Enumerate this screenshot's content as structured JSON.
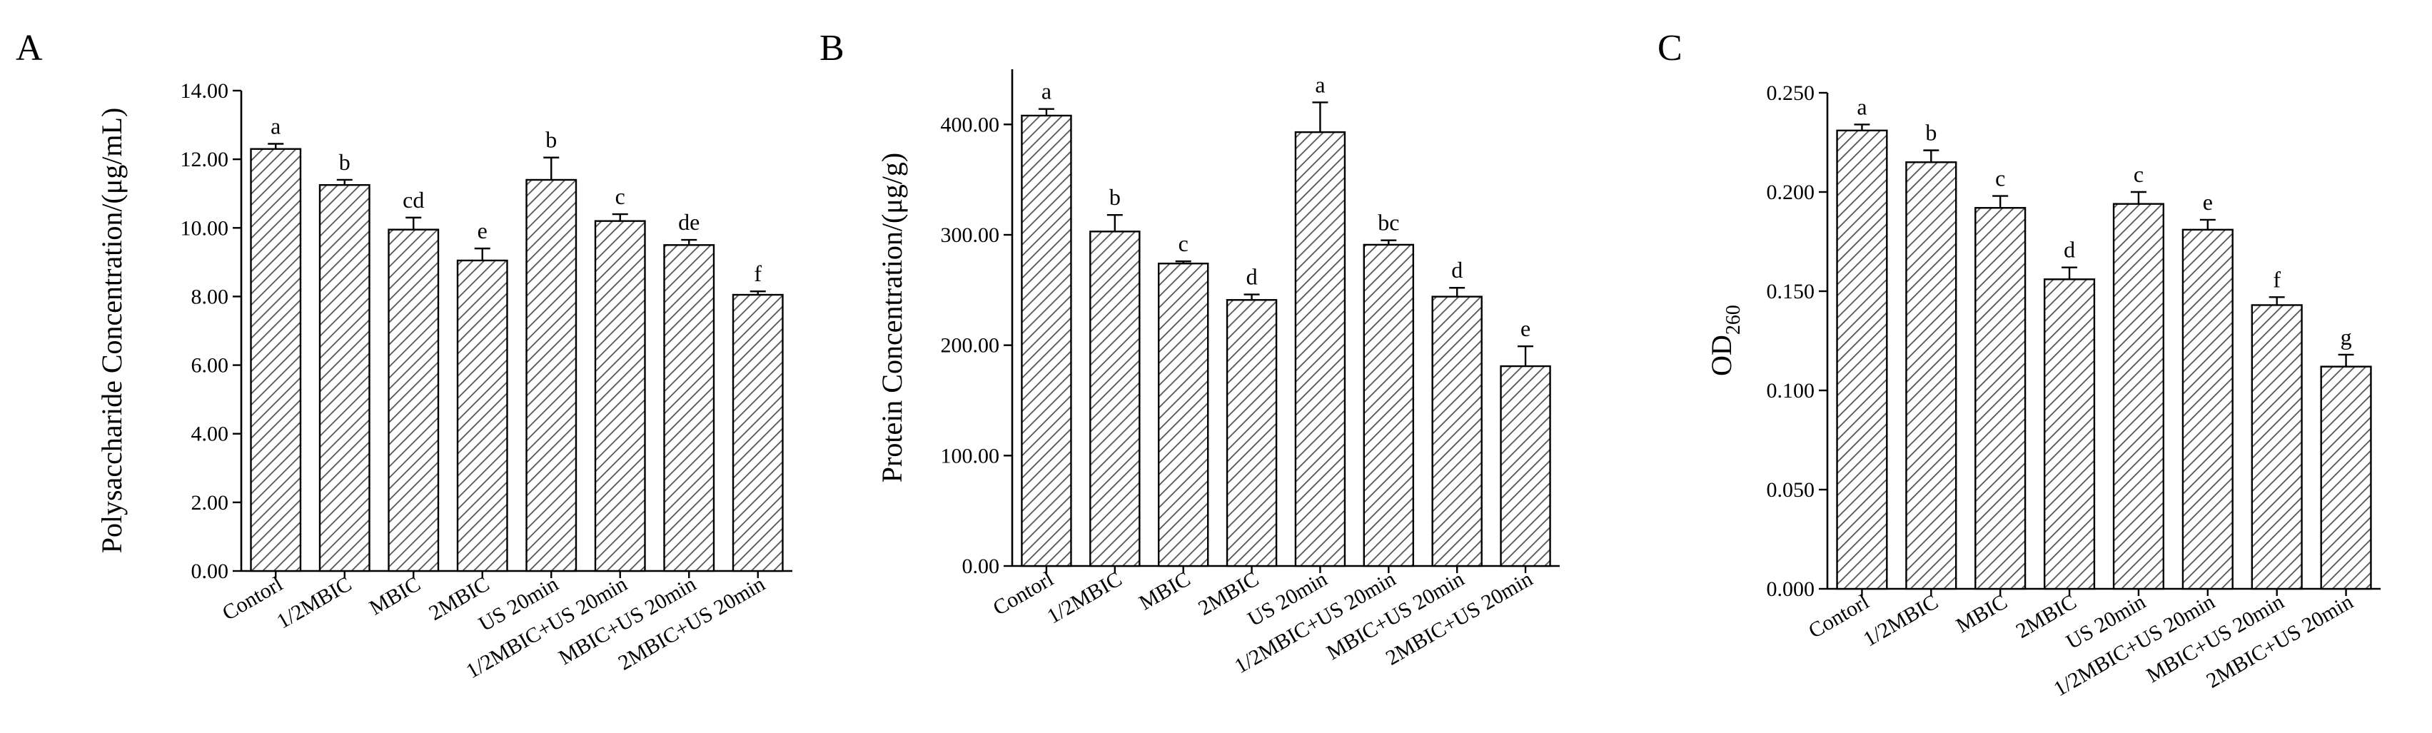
{
  "chart_data": [
    {
      "type": "bar",
      "panel": "A",
      "ylabel": "Polysaccharide Concentration/(μg/mL)",
      "ylim": [
        0,
        14
      ],
      "ytick_labels": [
        "0.00",
        "2.00",
        "4.00",
        "6.00",
        "8.00",
        "10.00",
        "12.00",
        "14.00"
      ],
      "categories": [
        "Contorl",
        "1/2MBIC",
        "MBIC",
        "2MBIC",
        "US 20min",
        "1/2MBIC+US 20min",
        "MBIC+US 20min",
        "2MBIC+US 20min"
      ],
      "values": [
        12.3,
        11.25,
        9.95,
        9.05,
        11.4,
        10.2,
        9.5,
        8.05
      ],
      "errors": [
        0.15,
        0.15,
        0.35,
        0.35,
        0.65,
        0.2,
        0.15,
        0.1
      ],
      "significance": [
        "a",
        "b",
        "cd",
        "e",
        "b",
        "c",
        "de",
        "f"
      ],
      "grid": false
    },
    {
      "type": "bar",
      "panel": "B",
      "ylabel": "Protein Concentration/(μg/g)",
      "ylim": [
        0,
        450
      ],
      "ytick_labels": [
        "0.00",
        "100.00",
        "200.00",
        "300.00",
        "400.00"
      ],
      "categories": [
        "Contorl",
        "1/2MBIC",
        "MBIC",
        "2MBIC",
        "US 20min",
        "1/2MBIC+US 20min",
        "MBIC+US 20min",
        "2MBIC+US 20min"
      ],
      "values": [
        408,
        303,
        274,
        241,
        393,
        291,
        244,
        181
      ],
      "errors": [
        6,
        15,
        2,
        5,
        27,
        4,
        8,
        18
      ],
      "significance": [
        "a",
        "b",
        "c",
        "d",
        "a",
        "bc",
        "d",
        "e"
      ],
      "grid": false
    },
    {
      "type": "bar",
      "panel": "C",
      "ylabel": "OD260",
      "ylim": [
        0,
        0.25
      ],
      "ytick_labels": [
        "0.000",
        "0.050",
        "0.100",
        "0.150",
        "0.200",
        "0.250"
      ],
      "categories": [
        "Contorl",
        "1/2MBIC",
        "MBIC",
        "2MBIC",
        "US 20min",
        "1/2MBIC+US 20min",
        "MBIC+US 20min",
        "2MBIC+US 20min"
      ],
      "values": [
        0.231,
        0.215,
        0.192,
        0.156,
        0.194,
        0.181,
        0.143,
        0.112
      ],
      "errors": [
        0.003,
        0.006,
        0.006,
        0.006,
        0.006,
        0.005,
        0.004,
        0.006
      ],
      "significance": [
        "a",
        "b",
        "c",
        "d",
        "c",
        "e",
        "f",
        "g"
      ],
      "grid": false
    }
  ],
  "panel_letters": [
    "A",
    "B",
    "C"
  ],
  "colors": {
    "bar_fill": "#ffffff",
    "hatch": "#555555",
    "axis": "#000000"
  }
}
